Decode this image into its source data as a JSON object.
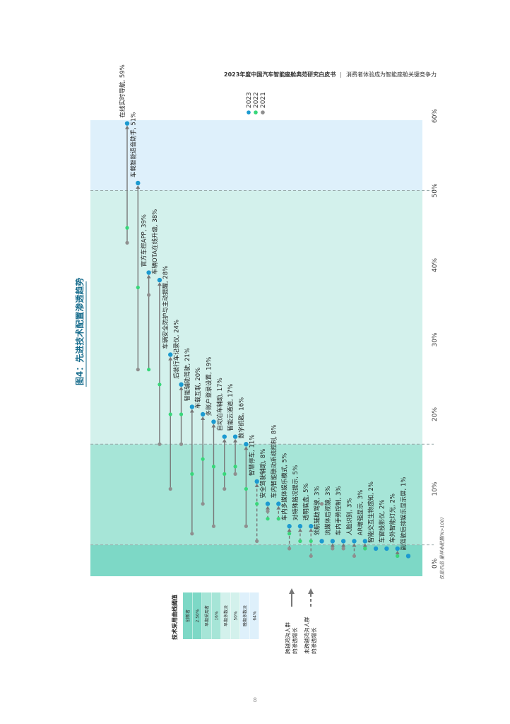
{
  "header": {
    "report": "2023年度中国汽车智能座舱典范研究白皮书",
    "separator": "|",
    "subtitle": "消费者体验成为智能座舱关键竞争力"
  },
  "page_number": "8",
  "chart_data": {
    "type": "scatter",
    "title": "图4：先进技术配置渗透趋势",
    "footnote": "仅显示品 量样本配置(N>100)",
    "x_ticks": [
      "0%",
      "10%",
      "20%",
      "30%",
      "40%",
      "50%",
      "60%"
    ],
    "xlim": [
      0,
      60
    ],
    "series": [
      {
        "name": "2023",
        "color": "#1c9ad0"
      },
      {
        "name": "2022",
        "color": "#38d77a"
      },
      {
        "name": "2021",
        "color": "#8f8f8f"
      }
    ],
    "bands": [
      {
        "from": 0,
        "to": 2.5,
        "color": "#7dd8c6",
        "label": "创新者"
      },
      {
        "from": 2.5,
        "to": 16,
        "color": "#a6e5d7",
        "label": "早期采用者"
      },
      {
        "from": 16,
        "to": 50,
        "color": "#d3f1ec",
        "label": "早期多数派"
      },
      {
        "from": 50,
        "to": 62,
        "color": "#def0fb",
        "label": "晚期多数派"
      }
    ],
    "band_lines": [
      2.5,
      16,
      50
    ],
    "items": [
      {
        "label": "在线实时导航, 59%",
        "v2023": 59,
        "v2022": 45,
        "v2021": 43
      },
      {
        "label": "车载智能语音助手, 51%",
        "v2023": 51,
        "v2022": 37,
        "v2021": 26
      },
      {
        "label": "官方车控APP, 39%",
        "v2023": 39,
        "v2022": 26,
        "v2021": 36
      },
      {
        "label": "车辆OTA在线升级, 38%",
        "v2023": 38,
        "v2022": 24,
        "v2021": 16
      },
      {
        "label": "车辆安全防护与主动提醒, 28%",
        "v2023": 28,
        "v2022": 20,
        "v2021": 10
      },
      {
        "label": "后装行车记录仪, 24%",
        "v2023": 24,
        "v2022": 20,
        "v2021": 16
      },
      {
        "label": "智能辅助驾驶, 21%",
        "v2023": 21,
        "v2022": 12,
        "v2021": 4
      },
      {
        "label": "车载互联, 20%",
        "v2023": 20,
        "v2022": 14,
        "v2021": 8
      },
      {
        "label": "多账户登录设置, 19%",
        "v2023": 19,
        "v2022": 13,
        "v2021": 5
      },
      {
        "label": "自动泊车辅助, 17%",
        "v2023": 17,
        "v2022": 12,
        "v2021": 10
      },
      {
        "label": "智能云通道, 17%",
        "v2023": 17,
        "v2022": 13,
        "v2021": 12
      },
      {
        "label": "数字钥匙, 16%",
        "v2023": 16,
        "v2022": 10,
        "v2021": 5
      },
      {
        "label": "智慧停车, 11%",
        "v2023": 11,
        "v2022": 8,
        "v2021": 3
      },
      {
        "label": "安全驾驶辅助, 8%",
        "v2023": 8,
        "v2022": 6,
        "v2021": 7
      },
      {
        "label": "车内智能联动系统控制, 8%",
        "v2023": 8,
        "v2022": 6,
        "v2021": 6
      },
      {
        "label": "车内多媒体娱乐模式, 5%",
        "v2023": 5,
        "v2022": 4,
        "v2021": 2
      },
      {
        "label": "对特殊路况提示, 5%",
        "v2023": 5,
        "v2022": 3,
        "v2021": 3
      },
      {
        "label": "透明底盘, 5%",
        "v2023": 5,
        "v2022": 3,
        "v2021": 1
      },
      {
        "label": "领航辅助驾驶, 3%",
        "v2023": 3,
        "v2022": 3,
        "v2021": 8
      },
      {
        "label": "流媒体后视镜, 3%",
        "v2023": 3,
        "v2022": 3,
        "v2021": 2
      },
      {
        "label": "车内手势控制, 3%",
        "v2023": 3,
        "v2022": 3,
        "v2021": 2
      },
      {
        "label": "人脸识别, 3%",
        "v2023": 3,
        "v2022": 3,
        "v2021": 1
      },
      {
        "label": "AR增强显示, 3%",
        "v2023": 3,
        "v2022": 2,
        "v2021": 2
      },
      {
        "label": "智能交互生物感知, 2%",
        "v2023": 2,
        "v2022": 2,
        "v2021": 2
      },
      {
        "label": "车窗投影仪, 2%",
        "v2023": 2,
        "v2022": 2,
        "v2021": 2
      },
      {
        "label": "车外智能灯光, 2%",
        "v2023": 2,
        "v2022": 1,
        "v2021": 1
      },
      {
        "label": "副驾驶后排娱乐显示屏, 1%",
        "v2023": 1,
        "v2022": 1,
        "v2021": 1
      }
    ],
    "threshold_legend": {
      "title": "技术采用曲线阈值",
      "rows": [
        "创新者",
        "2.50%",
        "早期采用者",
        "16%",
        "早期多数派",
        "50%",
        "晚期多数派",
        "64%"
      ]
    },
    "arrow_legend": [
      {
        "label": "跨越鸿沟人群 的渗透增长",
        "style": "solid"
      },
      {
        "label": "未跨越鸿沟人群 的渗透增长",
        "style": "dashed"
      }
    ]
  }
}
